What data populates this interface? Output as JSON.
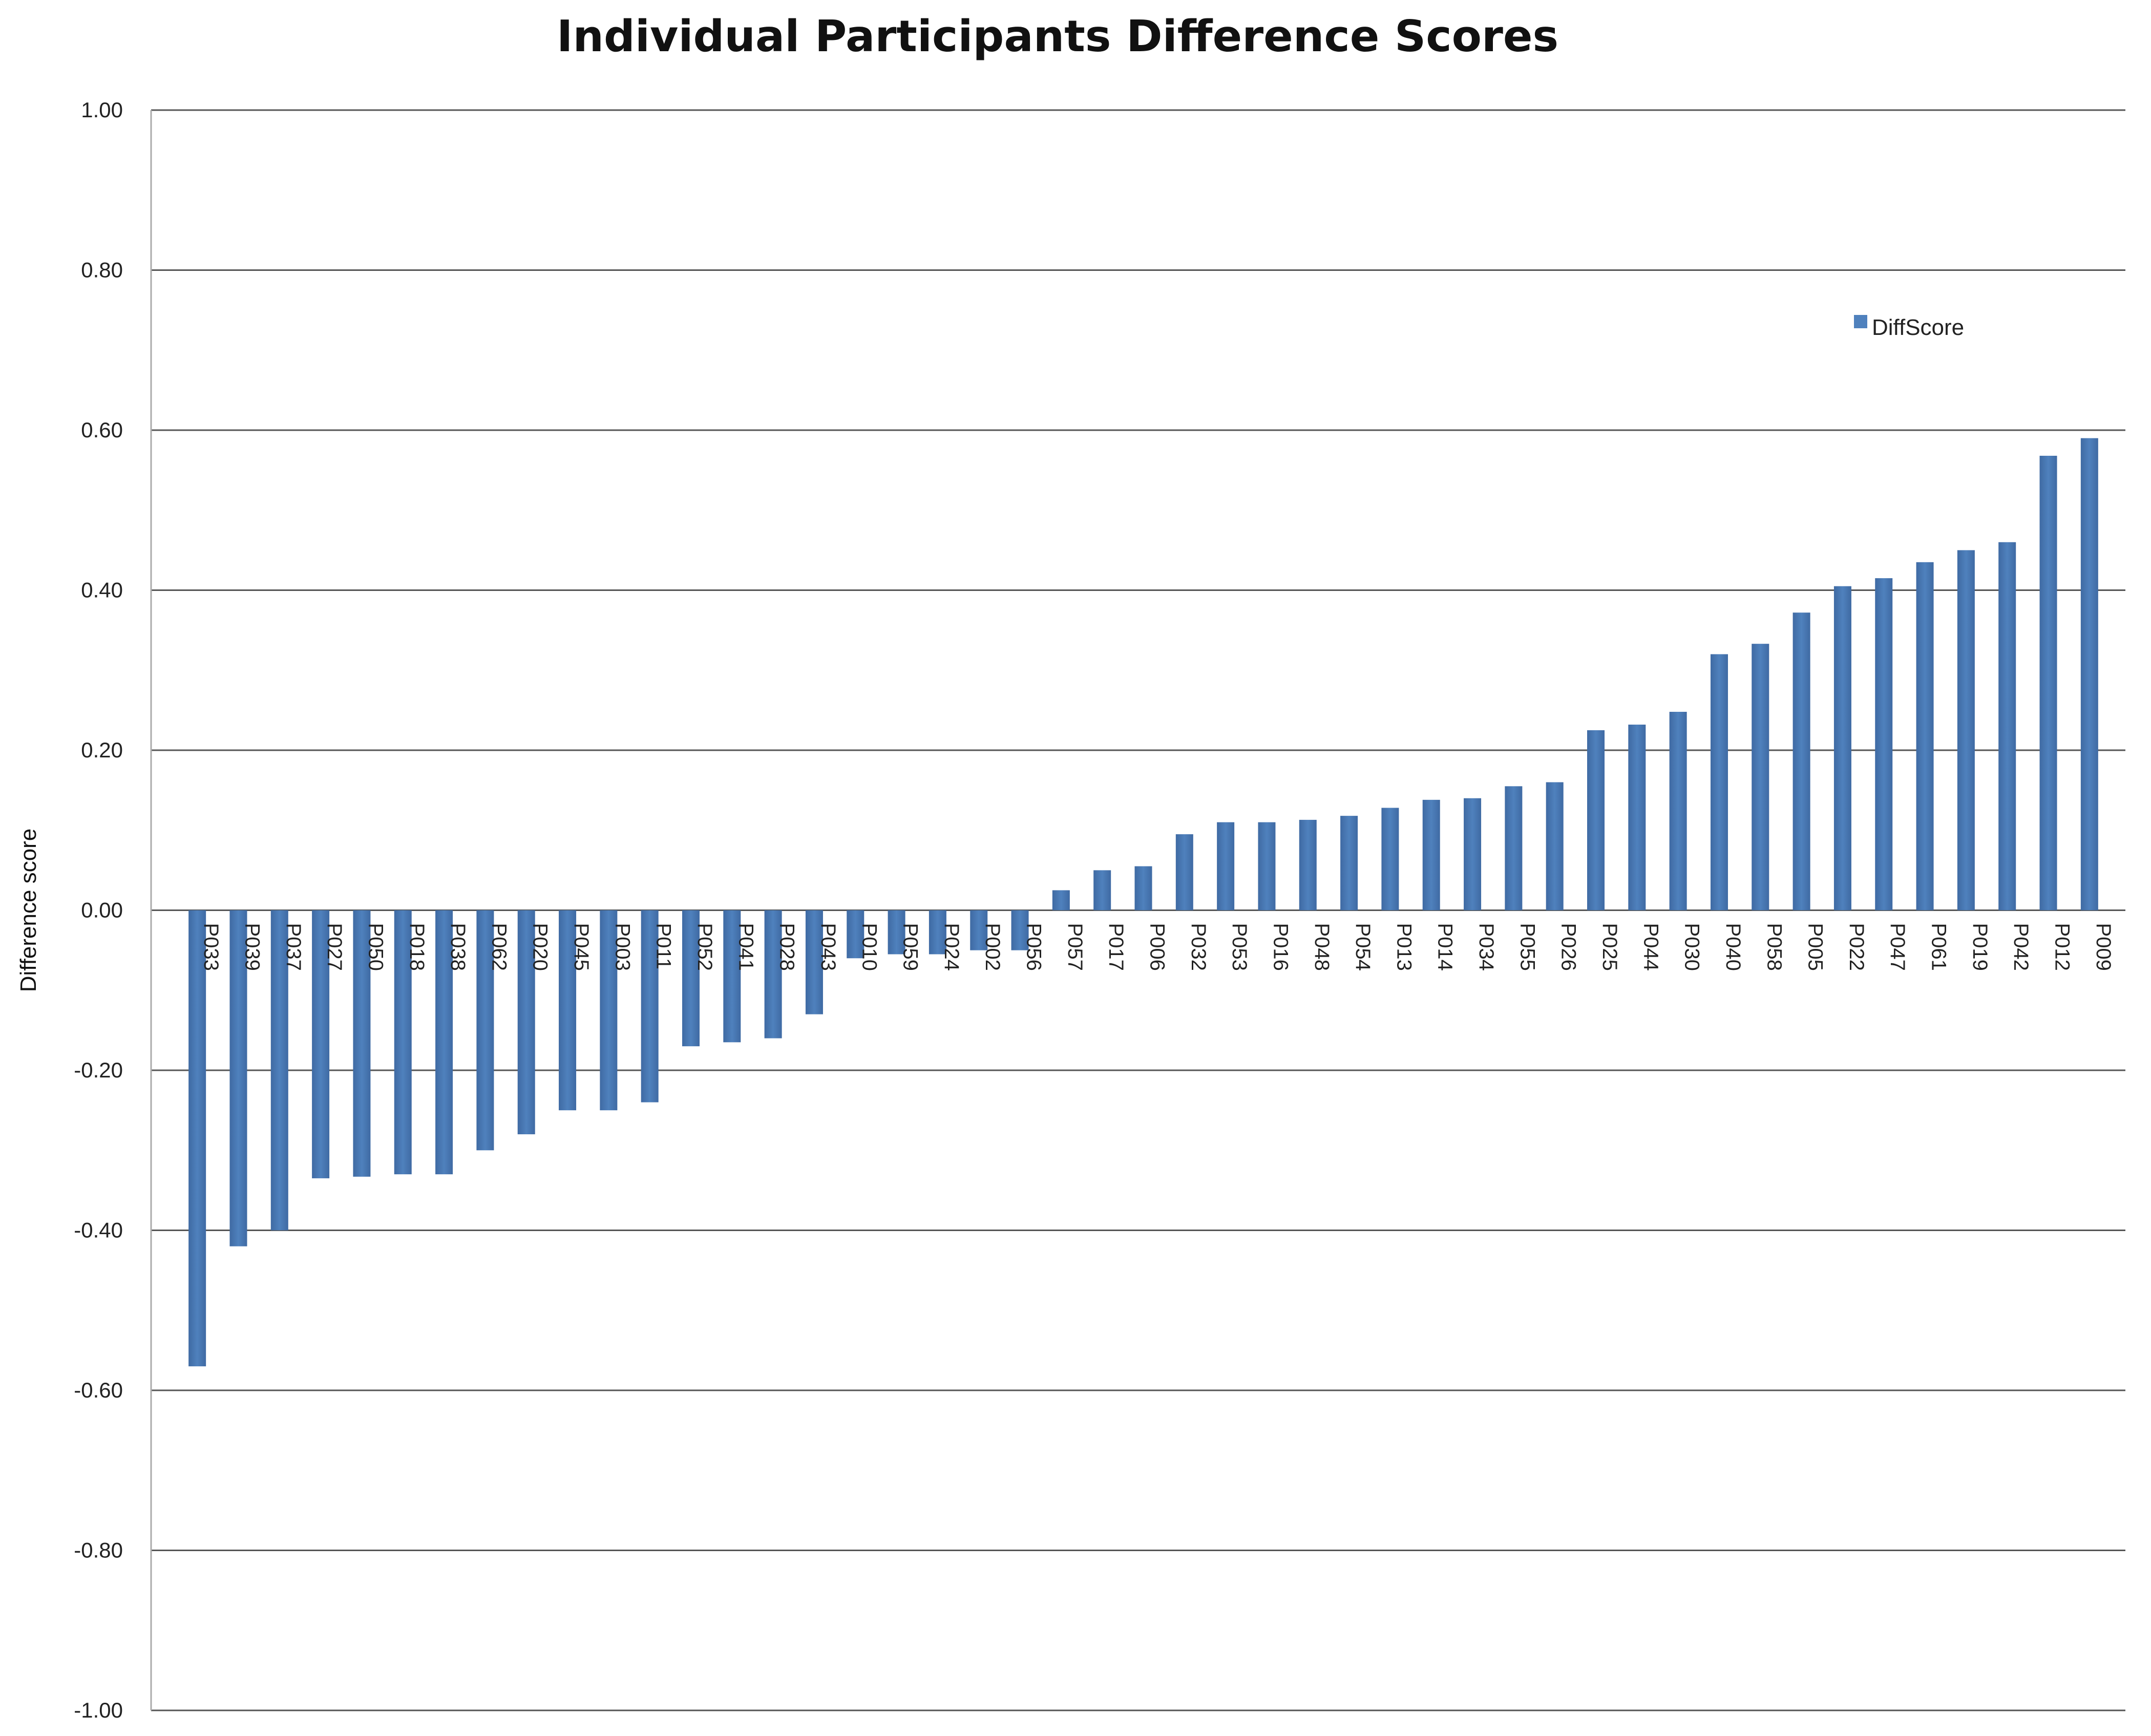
{
  "chart_data": {
    "type": "bar",
    "title": "Individual Participants Difference Scores",
    "xlabel": "",
    "ylabel": "Difference score",
    "ylim": [
      -1.0,
      1.0
    ],
    "yticks": [
      "1.00",
      "0.80",
      "0.60",
      "0.40",
      "0.20",
      "0.00",
      "-0.20",
      "-0.40",
      "-0.60",
      "-0.80",
      "-1.00"
    ],
    "grid": "horizontal",
    "legend_position": "top-right",
    "colors": {
      "bar": "#4f81bd",
      "bar_edge": "#3f6aa3",
      "grid": "#555555"
    },
    "categories": [
      "P033",
      "P039",
      "P037",
      "P027",
      "P050",
      "P018",
      "P038",
      "P062",
      "P020",
      "P045",
      "P003",
      "P011",
      "P052",
      "P041",
      "P028",
      "P043",
      "P010",
      "P059",
      "P024",
      "P002",
      "P056",
      "P057",
      "P017",
      "P006",
      "P032",
      "P053",
      "P016",
      "P048",
      "P054",
      "P013",
      "P014",
      "P034",
      "P055",
      "P026",
      "P025",
      "P044",
      "P030",
      "P040",
      "P058",
      "P005",
      "P022",
      "P047",
      "P061",
      "P019",
      "P042",
      "P012",
      "P009"
    ],
    "series": [
      {
        "name": "DiffScore",
        "values": [
          -0.57,
          -0.42,
          -0.4,
          -0.335,
          -0.333,
          -0.33,
          -0.33,
          -0.3,
          -0.28,
          -0.25,
          -0.25,
          -0.24,
          -0.17,
          -0.165,
          -0.16,
          -0.13,
          -0.06,
          -0.055,
          -0.055,
          -0.05,
          -0.05,
          0.025,
          0.05,
          0.055,
          0.095,
          0.11,
          0.11,
          0.113,
          0.118,
          0.128,
          0.138,
          0.14,
          0.155,
          0.16,
          0.225,
          0.232,
          0.248,
          0.32,
          0.333,
          0.372,
          0.405,
          0.415,
          0.435,
          0.45,
          0.46,
          0.568,
          0.59
        ]
      }
    ]
  }
}
